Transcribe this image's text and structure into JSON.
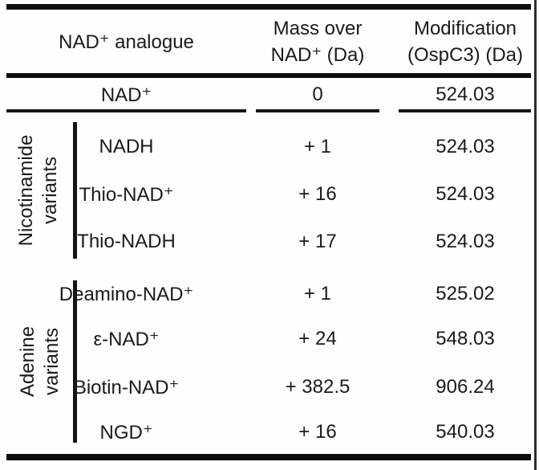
{
  "table": {
    "header": {
      "analogue_label": "NAD⁺ analogue",
      "mass_label_line1": "Mass over",
      "mass_label_line2": "NAD⁺ (Da)",
      "modification_label_line1": "Modification",
      "modification_label_line2": "(OspC3) (Da)"
    },
    "reference_row": {
      "name": "NAD⁺",
      "mass": "0",
      "modification": "524.03"
    },
    "groups": [
      {
        "label_lines": [
          "Nicotinamide",
          "variants"
        ],
        "rows": [
          {
            "name": "NADH",
            "mass": "+ 1",
            "modification": "524.03"
          },
          {
            "name": "Thio-NAD⁺",
            "mass": "+ 16",
            "modification": "524.03"
          },
          {
            "name": "Thio-NADH",
            "mass": "+ 17",
            "modification": "524.03"
          }
        ]
      },
      {
        "label_lines": [
          "Adenine",
          "variants"
        ],
        "rows": [
          {
            "name": "Deamino-NAD⁺",
            "mass": "+ 1",
            "modification": "525.02"
          },
          {
            "name": "ε-NAD⁺",
            "mass": "+ 24",
            "modification": "548.03"
          },
          {
            "name": "Biotin-NAD⁺",
            "mass": "+ 382.5",
            "modification": "906.24"
          },
          {
            "name": "NGD⁺",
            "mass": "+ 16",
            "modification": "540.03"
          }
        ]
      }
    ],
    "colors": {
      "text": "#1a1a1a",
      "rule": "#0e0e0e",
      "background": "#fefefe"
    }
  }
}
